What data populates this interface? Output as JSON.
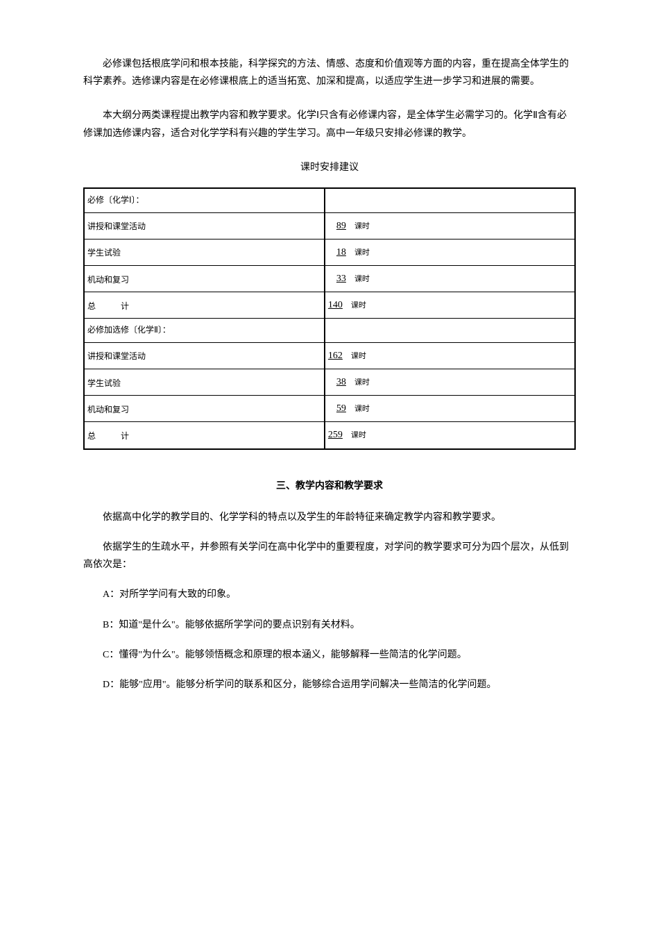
{
  "paragraphs": {
    "p1": "必修课包括根底学问和根本技能，科学探究的方法、情感、态度和价值观等方面的内容，重在提高全体学生的科学素养。选修课内容是在必修课根底上的适当拓宽、加深和提高，以适应学生进一步学习和进展的需要。",
    "p2": "本大纲分两类课程提出教学内容和教学要求。化学Ⅰ只含有必修课内容，是全体学生必需学习的。化学Ⅱ含有必修课加选修课内容，适合对化学学科有兴趣的学生学习。高中一年级只安排必修课的教学。",
    "tableTitle": "课时安排建议",
    "p3": "依据高中化学的教学目的、化学学科的特点以及学生的年龄特征来确定教学内容和教学要求。",
    "p4": "依据学生的生疏水平，并参照有关学问在高中化学中的重要程度，对学问的教学要求可分为四个层次，从低到高依次是：",
    "levelA": "A：对所学学问有大致的印象。",
    "levelB": "B：知道\"是什么\"。能够依据所学学问的要点识别有关材料。",
    "levelC": "C：懂得\"为什么\"。能够领悟概念和原理的根本涵义，能够解释一些简洁的化学问题。",
    "levelD": "D：能够\"应用\"。能够分析学问的联系和区分，能够综合运用学问解决一些简洁的化学问题。"
  },
  "sectionHeading": "三、教学内容和教学要求",
  "table": {
    "header1": "必修〔化学Ⅰ〕：",
    "header2": "必修加选修〔化学Ⅱ〕：",
    "row1Label": "讲授和课堂活动",
    "row2Label": "学生试验",
    "row3Label": "机动和复习",
    "row4LabelPart1": "总",
    "row4LabelPart2": "计",
    "unit": "课时",
    "chem1": {
      "lecture": "89",
      "experiment": "18",
      "review": "33",
      "total": "140"
    },
    "chem2": {
      "lecture": "162",
      "experiment": "38",
      "review": "59",
      "total": "259"
    }
  },
  "styling": {
    "bodyWidth": 950,
    "bodyHeight": 1344,
    "fontSize": 14,
    "tableFontSize": 12,
    "textColor": "#000000",
    "backgroundColor": "#ffffff",
    "borderColor": "#000000",
    "tableBorderWidth": 2
  }
}
